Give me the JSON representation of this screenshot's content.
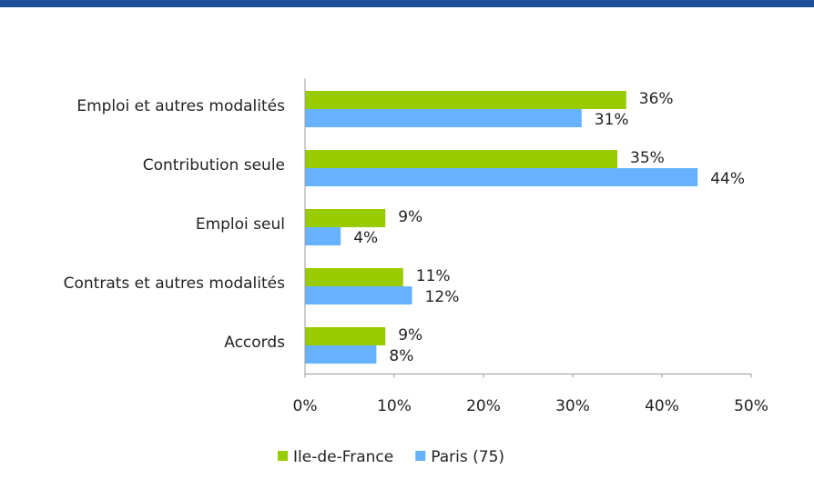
{
  "chart_data": {
    "type": "hbar",
    "categories": [
      "Emploi et autres modalités",
      "Contribution seule",
      "Emploi seul",
      "Contrats et autres modalités",
      "Accords"
    ],
    "series": [
      {
        "name": "Ile-de-France",
        "color": "#99cc00",
        "values": [
          36,
          35,
          9,
          11,
          9
        ],
        "value_labels": [
          "36%",
          "35%",
          "9%",
          "11%",
          "9%"
        ]
      },
      {
        "name": "Paris (75)",
        "color": "#66b2ff",
        "values": [
          31,
          44,
          4,
          12,
          8
        ],
        "value_labels": [
          "31%",
          "44%",
          "4%",
          "12%",
          "8%"
        ]
      }
    ],
    "xlim": [
      0,
      50
    ],
    "xticks": [
      {
        "value": 0,
        "label": "0%"
      },
      {
        "value": 10,
        "label": "10%"
      },
      {
        "value": 20,
        "label": "20%"
      },
      {
        "value": 30,
        "label": "30%"
      },
      {
        "value": 40,
        "label": "40%"
      },
      {
        "value": 50,
        "label": "50%"
      }
    ],
    "grid": false,
    "legend": "bottom"
  }
}
